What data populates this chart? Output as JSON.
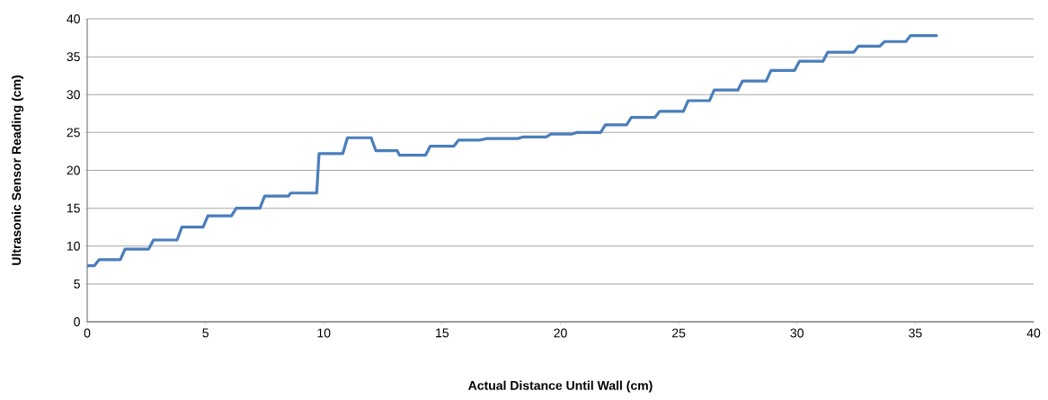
{
  "chart_data": {
    "type": "line",
    "xlabel": "Actual Distance Until Wall (cm)",
    "ylabel": "Ultrasonic Sensor Reading (cm)",
    "xlim": [
      0,
      40
    ],
    "xticks": [
      0,
      5,
      10,
      15,
      20,
      25,
      30,
      35,
      40
    ],
    "ylim": [
      0,
      40
    ],
    "yticks": [
      0,
      5,
      10,
      15,
      20,
      25,
      30,
      35,
      40
    ],
    "grid": "y",
    "marker": "none",
    "line_style": "solid",
    "series": [
      {
        "color": "#4a7ebb",
        "x": [
          0,
          0.3,
          0.5,
          1.4,
          1.6,
          2.6,
          2.8,
          3.8,
          4.0,
          4.9,
          5.1,
          6.1,
          6.3,
          7.3,
          7.5,
          8.5,
          8.6,
          9.7,
          9.8,
          10.8,
          11.0,
          12.0,
          12.2,
          13.1,
          13.2,
          14.3,
          14.5,
          15.5,
          15.7,
          16.6,
          16.9,
          18.2,
          18.4,
          19.4,
          19.6,
          20.5,
          20.7,
          21.7,
          21.9,
          22.8,
          23.0,
          24.0,
          24.2,
          25.2,
          25.4,
          26.3,
          26.5,
          27.5,
          27.7,
          28.7,
          28.9,
          29.9,
          30.1,
          31.1,
          31.3,
          32.4,
          32.6,
          33.5,
          33.7,
          34.6,
          34.8,
          35.9
        ],
        "values": [
          7.4,
          7.4,
          8.2,
          8.2,
          9.6,
          9.6,
          10.8,
          10.8,
          12.5,
          12.5,
          14.0,
          14.0,
          15.0,
          15.0,
          16.6,
          16.6,
          17.0,
          17.0,
          22.2,
          22.2,
          24.3,
          24.3,
          22.6,
          22.6,
          22.0,
          22.0,
          23.2,
          23.2,
          24.0,
          24.0,
          24.2,
          24.2,
          24.4,
          24.4,
          24.8,
          24.8,
          25.0,
          25.0,
          26.0,
          26.0,
          27.0,
          27.0,
          27.8,
          27.8,
          29.2,
          29.2,
          30.6,
          30.6,
          31.8,
          31.8,
          33.2,
          33.2,
          34.4,
          34.4,
          35.6,
          35.6,
          36.4,
          36.4,
          37.0,
          37.0,
          37.8,
          37.8
        ]
      }
    ]
  }
}
